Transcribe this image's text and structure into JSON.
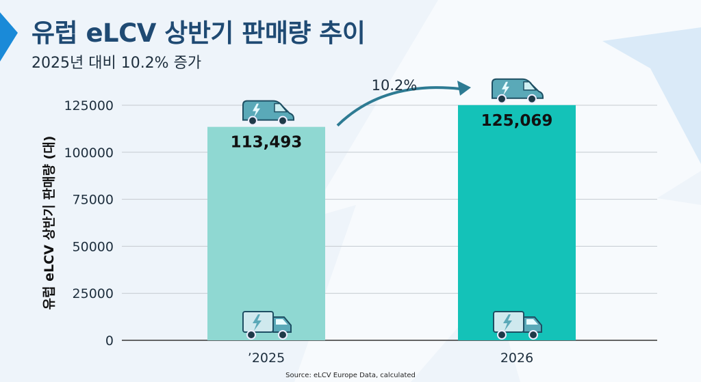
{
  "title": "유럽 eLCV 상반기 판매량 추이",
  "subtitle": "2025년 대비 10.2% 증가",
  "source": "Source: eLCV Europe Data, calculated",
  "colors": {
    "title": "#1f4a73",
    "bar_2025": "#8fd8d2",
    "bar_2026": "#14c2b8",
    "arrow": "#2e7b93",
    "accent_left": "#1a8ad8",
    "van_body": "#5aa9b8",
    "van_stroke": "#1e4f63"
  },
  "chart_data": {
    "type": "bar",
    "categories": [
      "’2025",
      "2026"
    ],
    "values": [
      113493,
      125069
    ],
    "value_labels": [
      "113,493",
      "125,069"
    ],
    "title": "",
    "xlabel": "",
    "ylabel": "유럽 eLCV 상반기 판매량 (대)",
    "ylim": [
      0,
      125000
    ],
    "yticks": [
      "0",
      "25000",
      "50000",
      "75000",
      "100000",
      "125000"
    ],
    "grid": true,
    "annotation": "10.2%",
    "icons": [
      "electric-van-icon",
      "electric-van-icon",
      "electric-truck-icon",
      "electric-truck-icon"
    ]
  }
}
